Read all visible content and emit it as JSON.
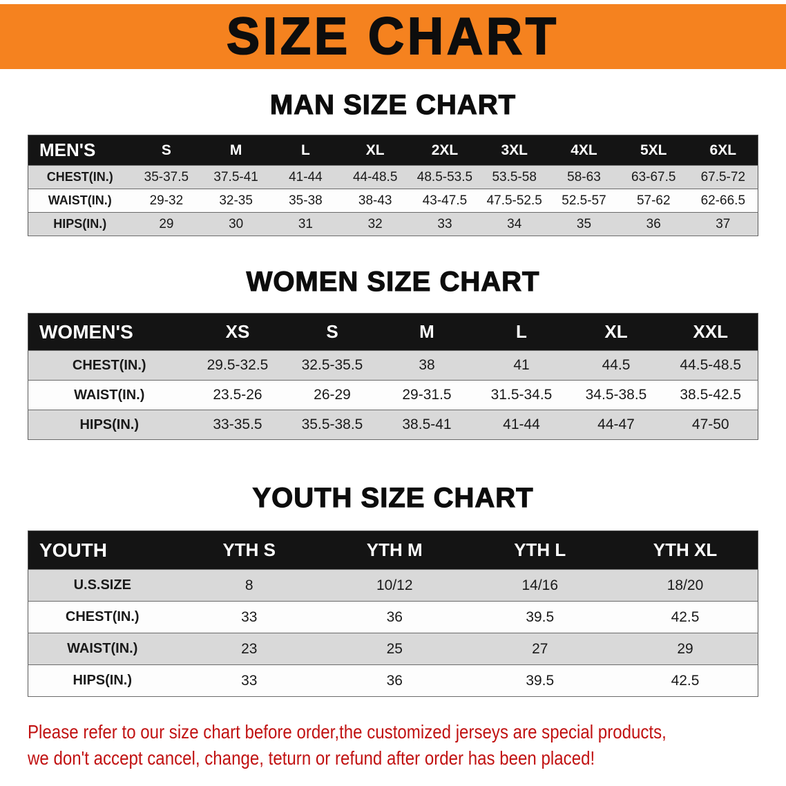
{
  "banner": {
    "title": "SIZE CHART"
  },
  "colors": {
    "banner_bg": "#f5821f",
    "header_bg": "#141414",
    "row_alt": "#d9d9d9",
    "disclaimer_color": "#c11212"
  },
  "men": {
    "heading": "MAN SIZE CHART",
    "table": {
      "header": [
        "MEN'S",
        "S",
        "M",
        "L",
        "XL",
        "2XL",
        "3XL",
        "4XL",
        "5XL",
        "6XL"
      ],
      "rows": [
        [
          "CHEST(IN.)",
          "35-37.5",
          "37.5-41",
          "41-44",
          "44-48.5",
          "48.5-53.5",
          "53.5-58",
          "58-63",
          "63-67.5",
          "67.5-72"
        ],
        [
          "WAIST(IN.)",
          "29-32",
          "32-35",
          "35-38",
          "38-43",
          "43-47.5",
          "47.5-52.5",
          "52.5-57",
          "57-62",
          "62-66.5"
        ],
        [
          "HIPS(IN.)",
          "29",
          "30",
          "31",
          "32",
          "33",
          "34",
          "35",
          "36",
          "37"
        ]
      ]
    }
  },
  "women": {
    "heading": "WOMEN SIZE CHART",
    "table": {
      "header": [
        "WOMEN'S",
        "XS",
        "S",
        "M",
        "L",
        "XL",
        "XXL"
      ],
      "rows": [
        [
          "CHEST(IN.)",
          "29.5-32.5",
          "32.5-35.5",
          "38",
          "41",
          "44.5",
          "44.5-48.5"
        ],
        [
          "WAIST(IN.)",
          "23.5-26",
          "26-29",
          "29-31.5",
          "31.5-34.5",
          "34.5-38.5",
          "38.5-42.5"
        ],
        [
          "HIPS(IN.)",
          "33-35.5",
          "35.5-38.5",
          "38.5-41",
          "41-44",
          "44-47",
          "47-50"
        ]
      ]
    }
  },
  "youth": {
    "heading": "YOUTH SIZE CHART",
    "table": {
      "header": [
        "YOUTH",
        "YTH S",
        "YTH M",
        "YTH L",
        "YTH XL"
      ],
      "rows": [
        [
          "U.S.SIZE",
          "8",
          "10/12",
          "14/16",
          "18/20"
        ],
        [
          "CHEST(IN.)",
          "33",
          "36",
          "39.5",
          "42.5"
        ],
        [
          "WAIST(IN.)",
          "23",
          "25",
          "27",
          "29"
        ],
        [
          "HIPS(IN.)",
          "33",
          "36",
          "39.5",
          "42.5"
        ]
      ]
    }
  },
  "disclaimer": {
    "line1": "Please refer to our size chart before order,the customized jerseys are special products,",
    "line2": "we don't accept cancel, change, teturn or refund after order has been placed!"
  }
}
